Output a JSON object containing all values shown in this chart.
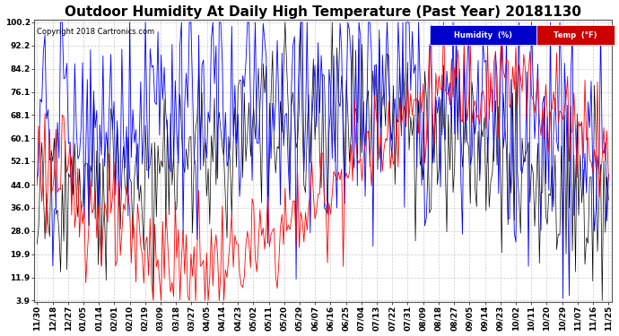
{
  "title": "Outdoor Humidity At Daily High Temperature (Past Year) 20181130",
  "copyright": "Copyright 2018 Cartronics.com",
  "yticks": [
    3.9,
    11.9,
    19.9,
    28.0,
    36.0,
    44.0,
    52.1,
    60.1,
    68.1,
    76.1,
    84.2,
    92.2,
    100.2
  ],
  "ylim_min": 3.9,
  "ylim_max": 100.2,
  "xlabels": [
    "11/30",
    "12/18",
    "12/27",
    "01/05",
    "01/14",
    "02/01",
    "02/10",
    "02/19",
    "03/09",
    "03/18",
    "03/27",
    "04/05",
    "04/14",
    "04/23",
    "05/02",
    "05/11",
    "05/20",
    "05/29",
    "06/07",
    "06/16",
    "06/25",
    "07/04",
    "07/13",
    "07/22",
    "07/31",
    "08/09",
    "08/18",
    "08/27",
    "09/05",
    "09/14",
    "09/23",
    "10/02",
    "10/11",
    "10/20",
    "10/29",
    "11/07",
    "11/16",
    "11/25"
  ],
  "humidity_color": "#0000ff",
  "temp_color": "#ff0000",
  "black_color": "#000000",
  "background_color": "#ffffff",
  "grid_color": "#cccccc",
  "title_fontsize": 11,
  "copyright_fontsize": 6,
  "tick_fontsize": 6.5,
  "legend_humidity_bg": "#0000cc",
  "legend_temp_bg": "#cc0000",
  "n_points": 365
}
